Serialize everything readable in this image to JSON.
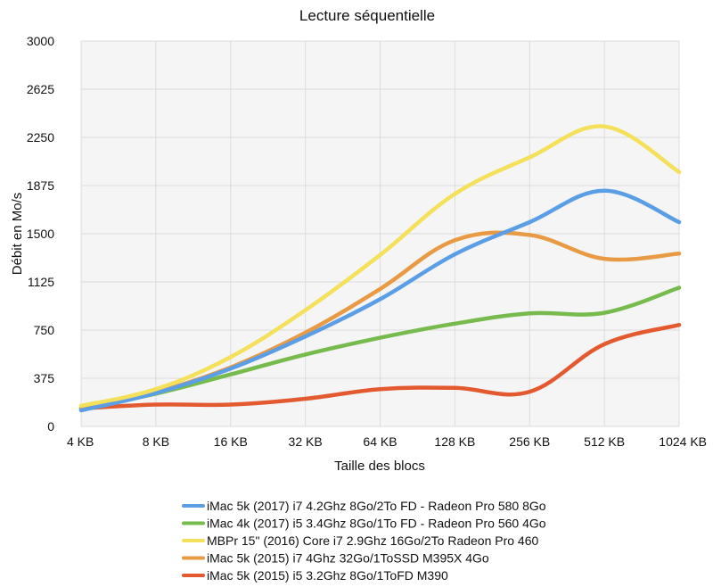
{
  "chart_data": {
    "type": "line",
    "title": "Lecture séquentielle",
    "xlabel": "Taille des blocs",
    "ylabel": "Débit en Mo/s",
    "categories": [
      "4 KB",
      "8 KB",
      "16 KB",
      "32 KB",
      "64 KB",
      "128 KB",
      "256 KB",
      "512 KB",
      "1024 KB"
    ],
    "yticks": [
      0,
      375,
      750,
      1125,
      1500,
      1875,
      2250,
      2625,
      3000
    ],
    "ylim": [
      0,
      3000
    ],
    "grid": true,
    "legend_position": "bottom",
    "series": [
      {
        "name": "iMac 5k (2017) i7 4.2Ghz 8Go/2To FD - Radeon Pro 580 8Go",
        "color": "#5b9ee6",
        "values": [
          125,
          260,
          450,
          700,
          990,
          1340,
          1590,
          1835,
          1590
        ]
      },
      {
        "name": "iMac 4k (2017) i5 3.4Ghz 8Go/1To FD - Radeon Pro 560 4Go",
        "color": "#77bb4e",
        "values": [
          140,
          255,
          405,
          560,
          690,
          800,
          880,
          885,
          1080
        ]
      },
      {
        "name": "MBPr 15\" (2016) Core i7 2.9Ghz 16Go/2To Radeon Pro 460",
        "color": "#f4e05a",
        "values": [
          160,
          290,
          540,
          905,
          1335,
          1810,
          2095,
          2335,
          1980
        ]
      },
      {
        "name": "iMac 5k (2015) i7 4Ghz 32Go/1ToSSD M395X 4Go",
        "color": "#e89a44",
        "values": [
          130,
          265,
          460,
          730,
          1070,
          1450,
          1490,
          1305,
          1345
        ]
      },
      {
        "name": "iMac 5k (2015) i5 3.2Ghz 8Go/1ToFD M390",
        "color": "#e45a30",
        "values": [
          140,
          170,
          170,
          215,
          290,
          300,
          270,
          640,
          790
        ]
      }
    ]
  }
}
